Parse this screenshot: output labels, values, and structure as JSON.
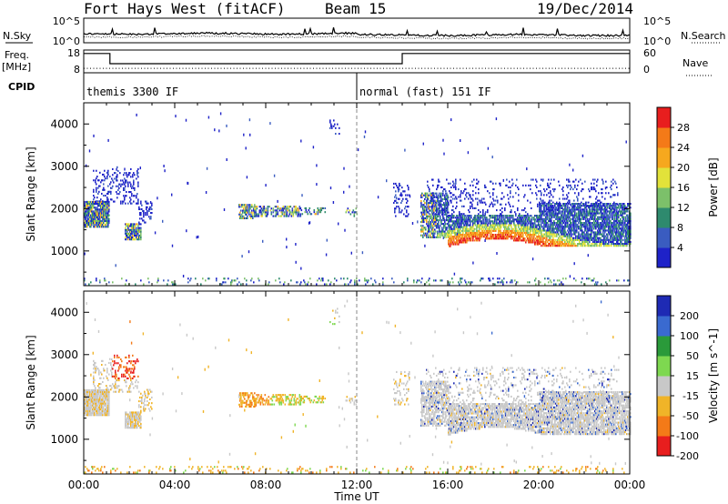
{
  "header": {
    "station": "Fort Hays West (fitACF)",
    "beam": "Beam 15",
    "date": "19/Dec/2014"
  },
  "chart_data": [
    {
      "type": "line",
      "panel": "noise",
      "left_label": "N.Sky",
      "right_label": "N.Search",
      "left_ticks": [
        "10^5",
        "10^0"
      ],
      "right_ticks": [
        "10^5",
        "10^0"
      ]
    },
    {
      "type": "line",
      "panel": "frequency",
      "left_label_line1": "Freq.",
      "left_label_line2": "[MHz]",
      "right_label": "Nave",
      "left_ticks": [
        18,
        8
      ],
      "right_ticks": [
        60,
        0
      ],
      "freq_segments": [
        {
          "start": 0.0,
          "end": 1.15,
          "mhz": 16.5
        },
        {
          "start": 1.15,
          "end": 14.0,
          "mhz": 12.0
        },
        {
          "start": 14.0,
          "end": 24.0,
          "mhz": 16.5
        }
      ],
      "nave_level": 2
    },
    {
      "type": "table",
      "panel": "cpid",
      "label": "CPID",
      "programs": [
        {
          "name": "themis 3300 IF",
          "start": 0.0,
          "end": 12.0
        },
        {
          "name": "normal (fast) 151 IF",
          "start": 12.0,
          "end": 24.0
        }
      ]
    },
    {
      "type": "heatmap",
      "panel": "power",
      "ylabel": "Slant Range [km]",
      "yticks": [
        1000,
        2000,
        3000,
        4000
      ],
      "ylim": [
        180,
        4500
      ],
      "colorbar_label": "Power [dB]",
      "colorbar_ticks": [
        4,
        8,
        12,
        16,
        20,
        24,
        28
      ],
      "colors": [
        "#1e22c8",
        "#3a5cc0",
        "#2e8a6e",
        "#7cc06a",
        "#e2e23a",
        "#f6a81e",
        "#f47a18",
        "#e81e1e"
      ]
    },
    {
      "type": "heatmap",
      "panel": "velocity",
      "ylabel": "Slant Range [km]",
      "yticks": [
        1000,
        2000,
        3000,
        4000
      ],
      "ylim": [
        180,
        4500
      ],
      "xlabel": "Time UT",
      "xticks": [
        "00:00",
        "04:00",
        "08:00",
        "12:00",
        "16:00",
        "20:00",
        "00:00"
      ],
      "xlim": [
        0,
        24
      ],
      "colorbar_label": "Velocity [m s^-1]",
      "colorbar_ticks": [
        "200",
        "100",
        "50",
        "15",
        "-15",
        "-50",
        "-100",
        "-200"
      ],
      "colors": [
        "#1e2ab4",
        "#3a6ad0",
        "#2a9a3a",
        "#7ed850",
        "#c8c8c8",
        "#f0b428",
        "#f47a18",
        "#e81e1e"
      ]
    }
  ]
}
